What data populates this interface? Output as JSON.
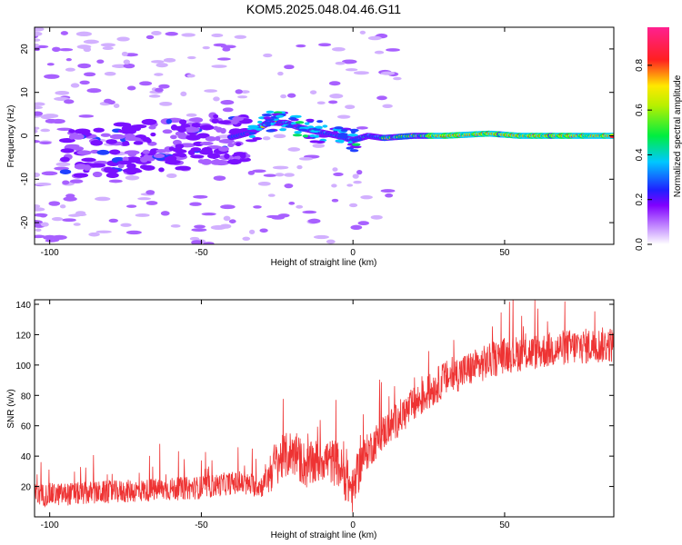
{
  "title": "KOM5.2025.048.04.46.G11",
  "chart_data": [
    {
      "type": "heatmap",
      "xlabel": "Height of straight line (km)",
      "ylabel": "Frequency (Hz)",
      "xlim": [
        -105,
        86
      ],
      "ylim": [
        -25,
        25
      ],
      "xticks": [
        -100,
        -50,
        0,
        50
      ],
      "yticks": [
        -20,
        -10,
        0,
        10,
        20
      ],
      "colorbar": {
        "label": "Normalized spectral amplitude",
        "range": [
          0,
          0.97
        ],
        "ticks": [
          0.0,
          0.2,
          0.4,
          0.6,
          0.8
        ]
      },
      "ridge": [
        {
          "x": -95,
          "y": -5
        },
        {
          "x": -85,
          "y": -4
        },
        {
          "x": -75,
          "y": -3
        },
        {
          "x": -65,
          "y": -2
        },
        {
          "x": -55,
          "y": -2
        },
        {
          "x": -45,
          "y": -1
        },
        {
          "x": -38,
          "y": 0
        },
        {
          "x": -33,
          "y": 1
        },
        {
          "x": -28,
          "y": 3
        },
        {
          "x": -22,
          "y": 3
        },
        {
          "x": -18,
          "y": 2
        },
        {
          "x": -12,
          "y": 1
        },
        {
          "x": -5,
          "y": 0
        },
        {
          "x": 0,
          "y": -1
        },
        {
          "x": 5,
          "y": 0
        },
        {
          "x": 10,
          "y": -0.5
        },
        {
          "x": 20,
          "y": 0
        },
        {
          "x": 30,
          "y": 0
        },
        {
          "x": 45,
          "y": 0.5
        },
        {
          "x": 55,
          "y": 0
        },
        {
          "x": 70,
          "y": 0
        },
        {
          "x": 85,
          "y": 0
        }
      ],
      "grid": false
    },
    {
      "type": "line",
      "xlabel": "Height of straight line (km)",
      "ylabel": "SNR (v/v)",
      "xlim": [
        -105,
        86
      ],
      "ylim": [
        0,
        143
      ],
      "xticks": [
        -100,
        -50,
        0,
        50
      ],
      "yticks": [
        20,
        40,
        60,
        80,
        100,
        120,
        140
      ],
      "color": "#ee3333",
      "trend": [
        {
          "x": -105,
          "y": 12
        },
        {
          "x": -90,
          "y": 13
        },
        {
          "x": -80,
          "y": 14
        },
        {
          "x": -70,
          "y": 15
        },
        {
          "x": -60,
          "y": 16
        },
        {
          "x": -50,
          "y": 17
        },
        {
          "x": -40,
          "y": 20
        },
        {
          "x": -30,
          "y": 18
        },
        {
          "x": -25,
          "y": 32
        },
        {
          "x": -20,
          "y": 38
        },
        {
          "x": -15,
          "y": 28
        },
        {
          "x": -10,
          "y": 34
        },
        {
          "x": -5,
          "y": 30
        },
        {
          "x": 0,
          "y": 12
        },
        {
          "x": 3,
          "y": 35
        },
        {
          "x": 10,
          "y": 52
        },
        {
          "x": 20,
          "y": 70
        },
        {
          "x": 30,
          "y": 87
        },
        {
          "x": 40,
          "y": 95
        },
        {
          "x": 50,
          "y": 103
        },
        {
          "x": 60,
          "y": 105
        },
        {
          "x": 70,
          "y": 108
        },
        {
          "x": 86,
          "y": 110
        }
      ],
      "grid": false
    }
  ]
}
